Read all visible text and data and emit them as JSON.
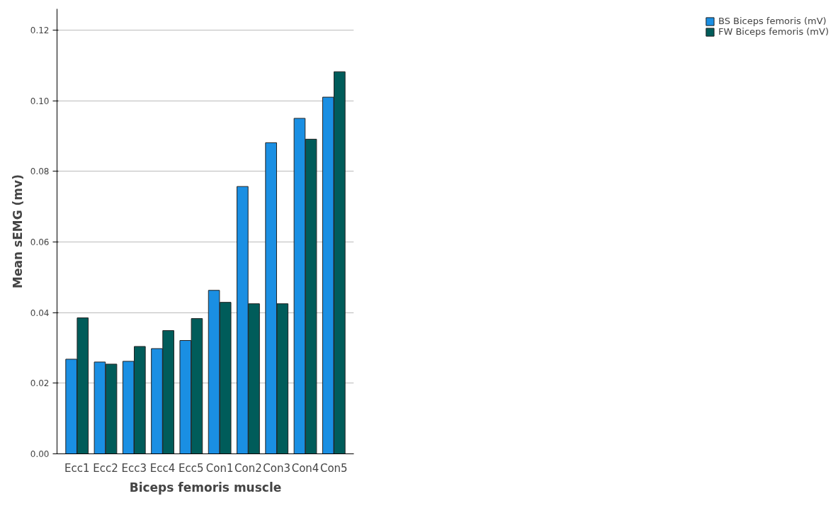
{
  "chart_data": {
    "type": "bar",
    "xlabel": "Biceps femoris muscle",
    "ylabel": "Mean sEMG (mv)",
    "categories": [
      "Ecc1",
      "Ecc2",
      "Ecc3",
      "Ecc4",
      "Ecc5",
      "Con1",
      "Con2",
      "Con3",
      "Con4",
      "Con5"
    ],
    "series": [
      {
        "name": "BS Biceps femoris (mV)",
        "color": "#1a8fe3",
        "values": [
          0.0268,
          0.026,
          0.0262,
          0.0298,
          0.0321,
          0.0463,
          0.0757,
          0.0881,
          0.095,
          0.101
        ]
      },
      {
        "name": "FW Biceps femoris (mV)",
        "color": "#005c5a",
        "values": [
          0.0385,
          0.0254,
          0.0304,
          0.0349,
          0.0383,
          0.0429,
          0.0425,
          0.0425,
          0.0891,
          0.1082
        ]
      }
    ],
    "ylim": [
      0,
      0.126
    ],
    "yticks": [
      {
        "value": 0,
        "label": "0.00"
      },
      {
        "value": 0.02,
        "label": "0.02"
      },
      {
        "value": 0.04,
        "label": "0.04"
      },
      {
        "value": 0.06,
        "label": "0.06"
      },
      {
        "value": 0.08,
        "label": "0.08"
      },
      {
        "value": 0.1,
        "label": "0.10"
      },
      {
        "value": 0.12,
        "label": "0.12"
      }
    ],
    "grid": "y",
    "legend": "top right"
  }
}
